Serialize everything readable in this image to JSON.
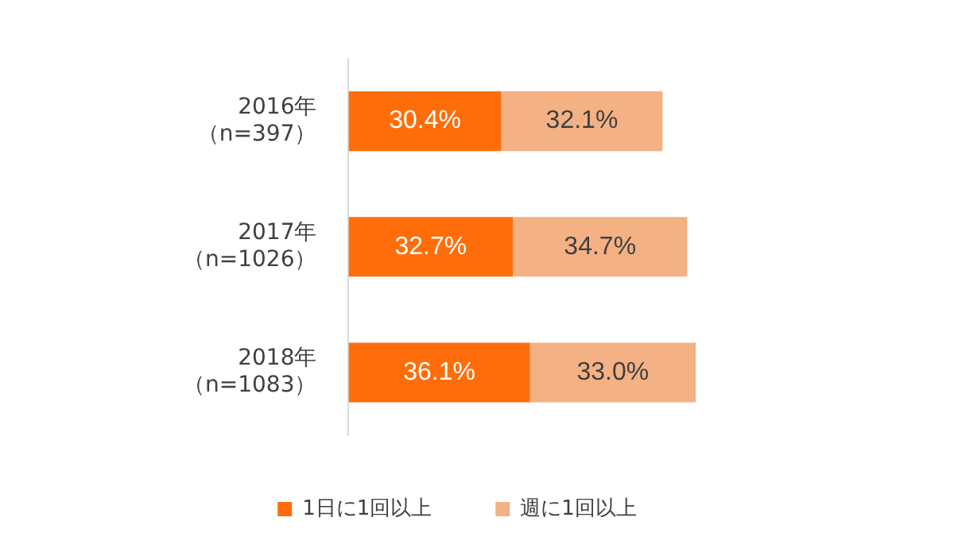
{
  "chart_data": {
    "type": "bar",
    "orientation": "horizontal",
    "stacked": true,
    "categories": [
      "2016年（n=397）",
      "2017年（n=1026）",
      "2018年（n=1083）"
    ],
    "series": [
      {
        "name": "1日に1回以上",
        "color": "#ff6d0a",
        "values": [
          30.4,
          32.7,
          36.1
        ],
        "value_labels": [
          "30.4%",
          "32.7%",
          "36.1%"
        ]
      },
      {
        "name": "週に1回以上",
        "color": "#f4b183",
        "values": [
          32.1,
          34.7,
          33.0
        ],
        "value_labels": [
          "32.1%",
          "34.7%",
          "33.0%"
        ]
      }
    ],
    "grid": false,
    "legend": "bottom"
  }
}
